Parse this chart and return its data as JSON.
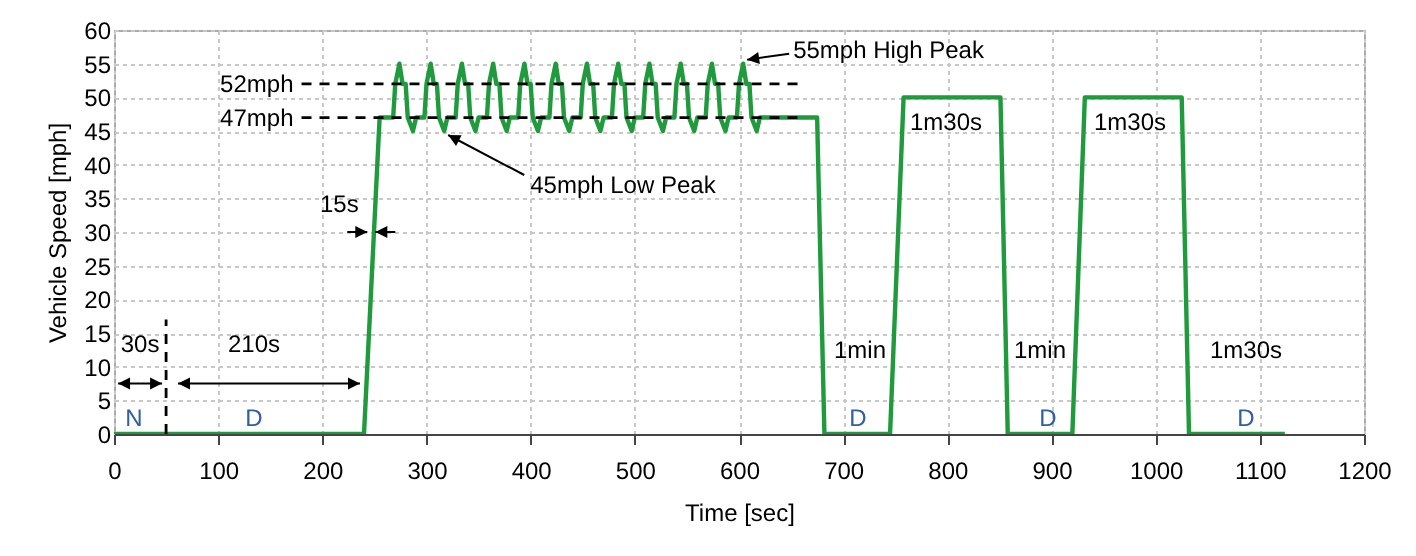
{
  "chart_data": {
    "type": "line",
    "xlabel": "Time [sec]",
    "ylabel": "Vehicle Speed [mph]",
    "xlim": [
      0,
      1200
    ],
    "xticks": [
      0,
      100,
      200,
      300,
      400,
      500,
      600,
      700,
      800,
      900,
      1000,
      1100,
      1200
    ],
    "ylim": [
      0,
      60
    ],
    "yticks": [
      0,
      5,
      10,
      15,
      20,
      25,
      30,
      35,
      40,
      45,
      50,
      55,
      60
    ],
    "grid": true,
    "series": [
      {
        "color": "#1f9a3c",
        "line_style": "solid",
        "x": [
          0,
          240,
          255,
          268,
          270,
          274,
          277,
          280,
          282,
          287,
          290,
          298,
          300,
          304,
          307,
          310,
          312,
          317,
          320,
          328,
          330,
          334,
          337,
          340,
          342,
          347,
          350,
          358,
          360,
          364,
          367,
          370,
          372,
          377,
          380,
          388,
          390,
          394,
          397,
          400,
          402,
          407,
          410,
          418,
          420,
          424,
          427,
          430,
          432,
          437,
          440,
          448,
          450,
          454,
          457,
          460,
          462,
          467,
          470,
          478,
          480,
          484,
          487,
          490,
          492,
          497,
          500,
          508,
          510,
          514,
          517,
          520,
          522,
          527,
          530,
          538,
          540,
          544,
          547,
          550,
          552,
          557,
          560,
          568,
          570,
          574,
          577,
          580,
          582,
          587,
          590,
          598,
          600,
          604,
          607,
          610,
          612,
          617,
          620,
          675,
          682,
          745,
          758,
          851,
          858,
          920,
          932,
          1025,
          1032,
          1124
        ],
        "values": [
          0,
          0,
          47,
          47,
          52,
          55,
          52,
          52,
          47,
          45,
          47,
          47,
          52,
          55,
          52,
          52,
          47,
          45,
          47,
          47,
          52,
          55,
          52,
          52,
          47,
          45,
          47,
          47,
          52,
          55,
          52,
          52,
          47,
          45,
          47,
          47,
          52,
          55,
          52,
          52,
          47,
          45,
          47,
          47,
          52,
          55,
          52,
          52,
          47,
          45,
          47,
          47,
          52,
          55,
          52,
          52,
          47,
          45,
          47,
          47,
          52,
          55,
          52,
          52,
          47,
          45,
          47,
          47,
          52,
          55,
          52,
          52,
          47,
          45,
          47,
          47,
          52,
          55,
          52,
          52,
          47,
          45,
          47,
          47,
          52,
          55,
          52,
          52,
          47,
          45,
          47,
          47,
          52,
          55,
          52,
          52,
          47,
          45,
          47,
          47,
          0,
          0,
          50,
          50,
          0,
          0,
          50,
          50,
          0,
          0
        ]
      },
      {
        "color": "#000000",
        "line_style": "dashed",
        "x": [
          180,
          660
        ],
        "values": [
          52,
          52
        ]
      },
      {
        "color": "#000000",
        "line_style": "dashed",
        "x": [
          180,
          660
        ],
        "values": [
          47,
          47
        ]
      },
      {
        "color": "#000000",
        "line_style": "dashed",
        "x": [
          50,
          50
        ],
        "values": [
          0,
          17
        ]
      }
    ],
    "annotations": [
      {
        "text": "30s",
        "x": 50,
        "y": 7.5
      },
      {
        "text": "210s",
        "x": 240,
        "y": 7.5
      },
      {
        "text": "15s",
        "x": 247,
        "y": 30
      },
      {
        "text": "52mph",
        "x": 180,
        "y": 52
      },
      {
        "text": "47mph",
        "x": 180,
        "y": 47
      },
      {
        "text": "55mph High Peak",
        "x": 604,
        "y": 55
      },
      {
        "text": "45mph Low Peak",
        "x": 317,
        "y": 45
      },
      "1m30s",
      "1m30s",
      "1min",
      "1min",
      "1m30s",
      "N",
      "D",
      "D",
      "D",
      "D"
    ]
  }
}
